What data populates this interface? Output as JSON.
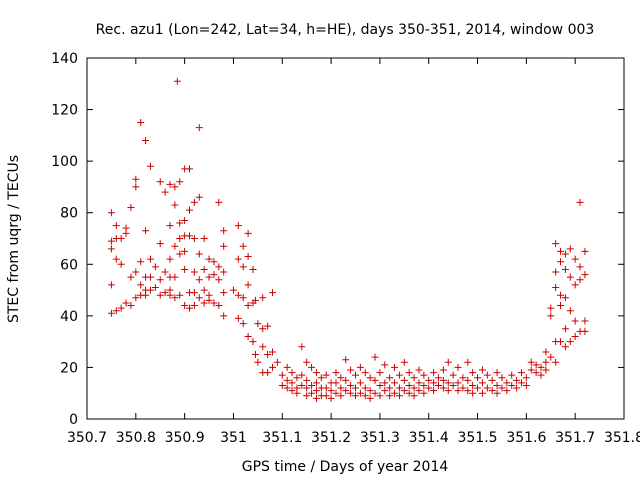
{
  "chart_data": {
    "type": "scatter",
    "title": "Rec. azu1 (Lon=242, Lat=34, h=HE), days 350-351, 2014, window 003",
    "xlabel": "GPS time / Days of year 2014",
    "ylabel": "STEC from uqrg / TECUs",
    "xlim": [
      350.7,
      351.8
    ],
    "ylim": [
      0,
      140
    ],
    "xticks": [
      "350.7",
      "350.8",
      "350.9",
      "351",
      "351.1",
      "351.2",
      "351.3",
      "351.4",
      "351.5",
      "351.6",
      "351.7",
      "351.8"
    ],
    "yticks": [
      "0",
      "20",
      "40",
      "60",
      "80",
      "100",
      "120",
      "140"
    ],
    "marker": "+",
    "color": "#cc0000",
    "grid": false,
    "legend": "none",
    "series": [
      {
        "points": [
          [
            350.75,
            80
          ],
          [
            350.75,
            66
          ],
          [
            350.75,
            69
          ],
          [
            350.75,
            52
          ],
          [
            350.75,
            41
          ],
          [
            350.76,
            75
          ],
          [
            350.76,
            70
          ],
          [
            350.76,
            62
          ],
          [
            350.76,
            42
          ],
          [
            350.77,
            60
          ],
          [
            350.77,
            70
          ],
          [
            350.77,
            43
          ],
          [
            350.78,
            74
          ],
          [
            350.78,
            72
          ],
          [
            350.78,
            45
          ],
          [
            350.79,
            82
          ],
          [
            350.79,
            55
          ],
          [
            350.79,
            44
          ],
          [
            350.8,
            93
          ],
          [
            350.8,
            90
          ],
          [
            350.8,
            57
          ],
          [
            350.8,
            47
          ],
          [
            350.81,
            115
          ],
          [
            350.81,
            61
          ],
          [
            350.81,
            52
          ],
          [
            350.81,
            48
          ],
          [
            350.82,
            108
          ],
          [
            350.82,
            73
          ],
          [
            350.82,
            55
          ],
          [
            350.82,
            50
          ],
          [
            350.82,
            48
          ],
          [
            350.83,
            98
          ],
          [
            350.83,
            62
          ],
          [
            350.83,
            55
          ],
          [
            350.83,
            50
          ],
          [
            350.84,
            59
          ],
          [
            350.84,
            51
          ],
          [
            350.85,
            92
          ],
          [
            350.85,
            68
          ],
          [
            350.85,
            54
          ],
          [
            350.85,
            48
          ],
          [
            350.86,
            88
          ],
          [
            350.86,
            57
          ],
          [
            350.86,
            49
          ],
          [
            350.87,
            91
          ],
          [
            350.87,
            75
          ],
          [
            350.87,
            62
          ],
          [
            350.87,
            55
          ],
          [
            350.87,
            50
          ],
          [
            350.87,
            48
          ],
          [
            350.88,
            90
          ],
          [
            350.88,
            83
          ],
          [
            350.88,
            67
          ],
          [
            350.88,
            55
          ],
          [
            350.88,
            47
          ],
          [
            350.885,
            131
          ],
          [
            350.89,
            92
          ],
          [
            350.89,
            76
          ],
          [
            350.89,
            70
          ],
          [
            350.89,
            64
          ],
          [
            350.89,
            48
          ],
          [
            350.9,
            97
          ],
          [
            350.9,
            77
          ],
          [
            350.9,
            71
          ],
          [
            350.9,
            65
          ],
          [
            350.9,
            58
          ],
          [
            350.9,
            44
          ],
          [
            350.91,
            97
          ],
          [
            350.91,
            81
          ],
          [
            350.91,
            71
          ],
          [
            350.91,
            49
          ],
          [
            350.91,
            43
          ],
          [
            350.92,
            84
          ],
          [
            350.92,
            70
          ],
          [
            350.92,
            57
          ],
          [
            350.92,
            49
          ],
          [
            350.92,
            44
          ],
          [
            350.93,
            113
          ],
          [
            350.93,
            86
          ],
          [
            350.93,
            64
          ],
          [
            350.93,
            54
          ],
          [
            350.93,
            47
          ],
          [
            350.94,
            70
          ],
          [
            350.94,
            58
          ],
          [
            350.94,
            50
          ],
          [
            350.94,
            45
          ],
          [
            350.95,
            62
          ],
          [
            350.95,
            55
          ],
          [
            350.95,
            48
          ],
          [
            350.95,
            46
          ],
          [
            350.96,
            61
          ],
          [
            350.96,
            56
          ],
          [
            350.96,
            45
          ],
          [
            350.97,
            84
          ],
          [
            350.97,
            59
          ],
          [
            350.97,
            54
          ],
          [
            350.97,
            44
          ],
          [
            350.98,
            73
          ],
          [
            350.98,
            67
          ],
          [
            350.98,
            57
          ],
          [
            350.98,
            49
          ],
          [
            350.98,
            40
          ],
          [
            351.0,
            50
          ],
          [
            351.01,
            75
          ],
          [
            351.01,
            62
          ],
          [
            351.01,
            48
          ],
          [
            351.01,
            39
          ],
          [
            351.02,
            67
          ],
          [
            351.02,
            59
          ],
          [
            351.02,
            47
          ],
          [
            351.02,
            37
          ],
          [
            351.03,
            72
          ],
          [
            351.03,
            63
          ],
          [
            351.03,
            52
          ],
          [
            351.03,
            44
          ],
          [
            351.03,
            32
          ],
          [
            351.04,
            58
          ],
          [
            351.04,
            45
          ],
          [
            351.04,
            30
          ],
          [
            351.045,
            46
          ],
          [
            351.045,
            25
          ],
          [
            351.05,
            37
          ],
          [
            351.05,
            22
          ],
          [
            351.06,
            47
          ],
          [
            351.06,
            35
          ],
          [
            351.06,
            28
          ],
          [
            351.06,
            18
          ],
          [
            351.07,
            36
          ],
          [
            351.07,
            25
          ],
          [
            351.07,
            18
          ],
          [
            351.08,
            49
          ],
          [
            351.08,
            26
          ],
          [
            351.08,
            20
          ],
          [
            351.09,
            22
          ],
          [
            351.1,
            17
          ],
          [
            351.1,
            13
          ],
          [
            351.11,
            20
          ],
          [
            351.11,
            15
          ],
          [
            351.11,
            12
          ],
          [
            351.12,
            18
          ],
          [
            351.12,
            14
          ],
          [
            351.12,
            11
          ],
          [
            351.13,
            16
          ],
          [
            351.13,
            12
          ],
          [
            351.13,
            10
          ],
          [
            351.14,
            28
          ],
          [
            351.14,
            17
          ],
          [
            351.14,
            13
          ],
          [
            351.15,
            22
          ],
          [
            351.15,
            15
          ],
          [
            351.15,
            12
          ],
          [
            351.15,
            9
          ],
          [
            351.16,
            20
          ],
          [
            351.16,
            13
          ],
          [
            351.16,
            10
          ],
          [
            351.17,
            18
          ],
          [
            351.17,
            14
          ],
          [
            351.17,
            11
          ],
          [
            351.17,
            8
          ],
          [
            351.18,
            16
          ],
          [
            351.18,
            12
          ],
          [
            351.18,
            9
          ],
          [
            351.19,
            17
          ],
          [
            351.19,
            12
          ],
          [
            351.19,
            9
          ],
          [
            351.2,
            14
          ],
          [
            351.2,
            11
          ],
          [
            351.2,
            8
          ],
          [
            351.21,
            18
          ],
          [
            351.21,
            14
          ],
          [
            351.21,
            10
          ],
          [
            351.22,
            16
          ],
          [
            351.22,
            12
          ],
          [
            351.22,
            9
          ],
          [
            351.23,
            23
          ],
          [
            351.23,
            15
          ],
          [
            351.23,
            11
          ],
          [
            351.24,
            19
          ],
          [
            351.24,
            13
          ],
          [
            351.24,
            10
          ],
          [
            351.25,
            17
          ],
          [
            351.25,
            12
          ],
          [
            351.25,
            9
          ],
          [
            351.26,
            20
          ],
          [
            351.26,
            14
          ],
          [
            351.26,
            10
          ],
          [
            351.27,
            18
          ],
          [
            351.27,
            12
          ],
          [
            351.27,
            9
          ],
          [
            351.28,
            16
          ],
          [
            351.28,
            11
          ],
          [
            351.28,
            8
          ],
          [
            351.29,
            24
          ],
          [
            351.29,
            15
          ],
          [
            351.29,
            10
          ],
          [
            351.3,
            18
          ],
          [
            351.3,
            13
          ],
          [
            351.3,
            9
          ],
          [
            351.31,
            21
          ],
          [
            351.31,
            14
          ],
          [
            351.31,
            11
          ],
          [
            351.32,
            16
          ],
          [
            351.32,
            12
          ],
          [
            351.32,
            9
          ],
          [
            351.33,
            20
          ],
          [
            351.33,
            14
          ],
          [
            351.33,
            10
          ],
          [
            351.34,
            17
          ],
          [
            351.34,
            12
          ],
          [
            351.34,
            9
          ],
          [
            351.35,
            22
          ],
          [
            351.35,
            15
          ],
          [
            351.35,
            11
          ],
          [
            351.36,
            18
          ],
          [
            351.36,
            13
          ],
          [
            351.36,
            10
          ],
          [
            351.37,
            16
          ],
          [
            351.37,
            12
          ],
          [
            351.37,
            9
          ],
          [
            351.38,
            19
          ],
          [
            351.38,
            14
          ],
          [
            351.38,
            11
          ],
          [
            351.39,
            17
          ],
          [
            351.39,
            13
          ],
          [
            351.39,
            10
          ],
          [
            351.4,
            15
          ],
          [
            351.4,
            12
          ],
          [
            351.41,
            18
          ],
          [
            351.41,
            14
          ],
          [
            351.41,
            11
          ],
          [
            351.42,
            16
          ],
          [
            351.42,
            13
          ],
          [
            351.43,
            19
          ],
          [
            351.43,
            15
          ],
          [
            351.43,
            12
          ],
          [
            351.44,
            22
          ],
          [
            351.44,
            14
          ],
          [
            351.44,
            11
          ],
          [
            351.45,
            17
          ],
          [
            351.45,
            13
          ],
          [
            351.46,
            20
          ],
          [
            351.46,
            14
          ],
          [
            351.46,
            11
          ],
          [
            351.47,
            16
          ],
          [
            351.47,
            12
          ],
          [
            351.48,
            22
          ],
          [
            351.48,
            15
          ],
          [
            351.48,
            11
          ],
          [
            351.49,
            18
          ],
          [
            351.49,
            13
          ],
          [
            351.49,
            10
          ],
          [
            351.5,
            16
          ],
          [
            351.5,
            12
          ],
          [
            351.51,
            19
          ],
          [
            351.51,
            14
          ],
          [
            351.51,
            10
          ],
          [
            351.52,
            17
          ],
          [
            351.52,
            12
          ],
          [
            351.53,
            15
          ],
          [
            351.53,
            11
          ],
          [
            351.54,
            18
          ],
          [
            351.54,
            13
          ],
          [
            351.54,
            10
          ],
          [
            351.55,
            16
          ],
          [
            351.55,
            12
          ],
          [
            351.56,
            14
          ],
          [
            351.56,
            11
          ],
          [
            351.57,
            17
          ],
          [
            351.57,
            13
          ],
          [
            351.58,
            15
          ],
          [
            351.58,
            12
          ],
          [
            351.59,
            18
          ],
          [
            351.59,
            14
          ],
          [
            351.6,
            16
          ],
          [
            351.6,
            13
          ],
          [
            351.61,
            22
          ],
          [
            351.61,
            19
          ],
          [
            351.62,
            21
          ],
          [
            351.62,
            18
          ],
          [
            351.63,
            20
          ],
          [
            351.63,
            17
          ],
          [
            351.64,
            26
          ],
          [
            351.64,
            22
          ],
          [
            351.64,
            19
          ],
          [
            351.65,
            43
          ],
          [
            351.65,
            40
          ],
          [
            351.65,
            24
          ],
          [
            351.66,
            68
          ],
          [
            351.66,
            57
          ],
          [
            351.66,
            51
          ],
          [
            351.66,
            30
          ],
          [
            351.66,
            22
          ],
          [
            351.67,
            65
          ],
          [
            351.67,
            61
          ],
          [
            351.67,
            48
          ],
          [
            351.67,
            44
          ],
          [
            351.67,
            30
          ],
          [
            351.68,
            64
          ],
          [
            351.68,
            58
          ],
          [
            351.68,
            47
          ],
          [
            351.68,
            35
          ],
          [
            351.68,
            28
          ],
          [
            351.69,
            66
          ],
          [
            351.69,
            55
          ],
          [
            351.69,
            42
          ],
          [
            351.69,
            30
          ],
          [
            351.7,
            62
          ],
          [
            351.7,
            52
          ],
          [
            351.7,
            38
          ],
          [
            351.7,
            32
          ],
          [
            351.71,
            84
          ],
          [
            351.71,
            59
          ],
          [
            351.71,
            54
          ],
          [
            351.71,
            34
          ],
          [
            351.72,
            65
          ],
          [
            351.72,
            56
          ],
          [
            351.72,
            38
          ],
          [
            351.72,
            34
          ]
        ]
      }
    ]
  }
}
